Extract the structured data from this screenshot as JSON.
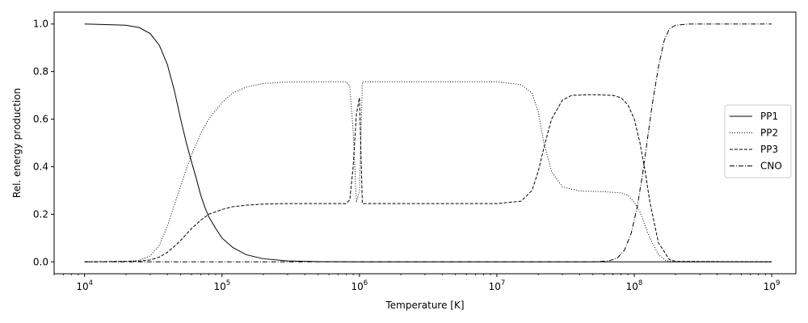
{
  "chart_data": {
    "type": "line",
    "xlabel": "Temperature [K]",
    "ylabel": "Rel. energy production",
    "xscale": "log",
    "xlim": [
      6000,
      1500000000
    ],
    "ylim": [
      -0.05,
      1.05
    ],
    "xticks": [
      {
        "value": 10000,
        "base": "10",
        "exp": "4"
      },
      {
        "value": 100000,
        "base": "10",
        "exp": "5"
      },
      {
        "value": 1000000,
        "base": "10",
        "exp": "6"
      },
      {
        "value": 10000000,
        "base": "10",
        "exp": "7"
      },
      {
        "value": 100000000,
        "base": "10",
        "exp": "8"
      },
      {
        "value": 1000000000,
        "base": "10",
        "exp": "9"
      }
    ],
    "yticks": [
      "0.0",
      "0.2",
      "0.4",
      "0.6",
      "0.8",
      "1.0"
    ],
    "grid": false,
    "legend_position": "right",
    "series": [
      {
        "name": "PP1",
        "style": "solid",
        "x": [
          10000,
          20000,
          25000,
          30000,
          35000,
          40000,
          45000,
          50000,
          55000,
          60000,
          65000,
          70000,
          75000,
          80000,
          90000,
          100000,
          120000,
          150000,
          200000,
          300000,
          500000,
          1000000,
          10000000,
          100000000,
          1000000000
        ],
        "y": [
          1.0,
          0.995,
          0.985,
          0.96,
          0.91,
          0.83,
          0.72,
          0.6,
          0.5,
          0.42,
          0.35,
          0.28,
          0.23,
          0.19,
          0.14,
          0.1,
          0.06,
          0.03,
          0.013,
          0.004,
          0.001,
          0.0,
          0.0,
          0.0,
          0.0
        ]
      },
      {
        "name": "PP2",
        "style": "dotted",
        "x": [
          10000,
          20000,
          25000,
          30000,
          35000,
          40000,
          45000,
          50000,
          55000,
          60000,
          70000,
          80000,
          100000,
          120000,
          150000,
          200000,
          300000,
          500000,
          800000,
          850000,
          900000,
          950000,
          1000000,
          1050000,
          1200000,
          2000000,
          5000000,
          10000000,
          15000000,
          18000000,
          20000000,
          22000000,
          25000000,
          30000000,
          40000000,
          60000000,
          80000000,
          90000000,
          100000000,
          110000000,
          130000000,
          150000000,
          170000000,
          200000000,
          1000000000
        ],
        "y": [
          0.0,
          0.002,
          0.006,
          0.025,
          0.07,
          0.15,
          0.24,
          0.32,
          0.39,
          0.45,
          0.54,
          0.6,
          0.67,
          0.71,
          0.735,
          0.75,
          0.756,
          0.757,
          0.757,
          0.74,
          0.55,
          0.25,
          0.3,
          0.757,
          0.757,
          0.757,
          0.757,
          0.757,
          0.745,
          0.71,
          0.63,
          0.5,
          0.38,
          0.315,
          0.298,
          0.295,
          0.29,
          0.28,
          0.25,
          0.21,
          0.1,
          0.03,
          0.005,
          0.0,
          0.0
        ]
      },
      {
        "name": "PP3",
        "style": "dashed",
        "x": [
          10000,
          25000,
          30000,
          35000,
          40000,
          45000,
          50000,
          60000,
          70000,
          80000,
          100000,
          120000,
          150000,
          200000,
          300000,
          500000,
          800000,
          850000,
          900000,
          950000,
          1000000,
          1050000,
          2000000,
          10000000,
          15000000,
          18000000,
          20000000,
          22000000,
          25000000,
          30000000,
          35000000,
          50000000,
          70000000,
          80000000,
          90000000,
          100000000,
          110000000,
          120000000,
          130000000,
          150000000,
          180000000,
          200000000,
          1000000000
        ],
        "y": [
          0.0,
          0.003,
          0.008,
          0.02,
          0.04,
          0.065,
          0.09,
          0.14,
          0.175,
          0.2,
          0.22,
          0.232,
          0.238,
          0.243,
          0.245,
          0.245,
          0.245,
          0.26,
          0.4,
          0.62,
          0.69,
          0.245,
          0.245,
          0.245,
          0.255,
          0.3,
          0.38,
          0.48,
          0.6,
          0.68,
          0.7,
          0.703,
          0.7,
          0.69,
          0.66,
          0.6,
          0.5,
          0.38,
          0.25,
          0.08,
          0.01,
          0.002,
          0.0
        ]
      },
      {
        "name": "CNO",
        "style": "dashdot",
        "x": [
          10000,
          50000000,
          65000000,
          75000000,
          85000000,
          95000000,
          105000000,
          115000000,
          125000000,
          135000000,
          150000000,
          165000000,
          180000000,
          200000000,
          250000000,
          1000000000
        ],
        "y": [
          0.0,
          0.0,
          0.004,
          0.015,
          0.05,
          0.12,
          0.23,
          0.37,
          0.52,
          0.66,
          0.82,
          0.93,
          0.98,
          0.995,
          1.0,
          1.0
        ]
      }
    ]
  }
}
